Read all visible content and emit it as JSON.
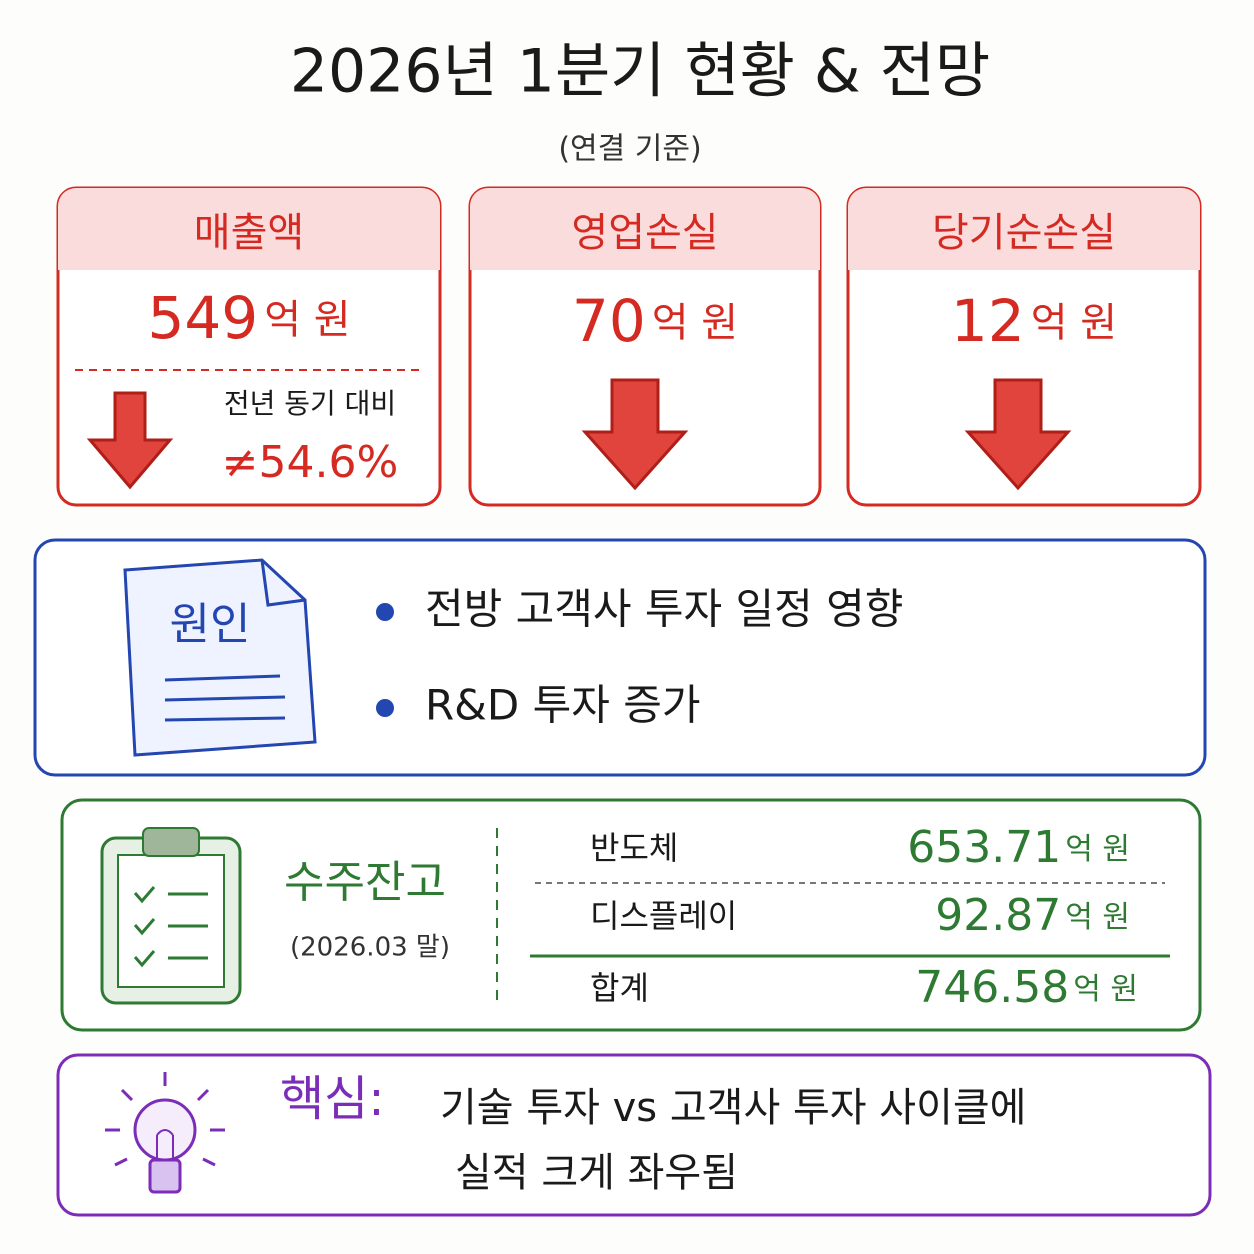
{
  "header": {
    "title": "2026년 1분기 현황 & 전망",
    "subtitle": "(연결 기준)"
  },
  "metrics": [
    {
      "label": "매출액",
      "value": "549",
      "unit": "억 원",
      "note": "전년 동기 대비",
      "change": "≠54.6%"
    },
    {
      "label": "영업손실",
      "value": "70",
      "unit": "억 원"
    },
    {
      "label": "당기순손실",
      "value": "12",
      "unit": "억 원"
    }
  ],
  "causes": {
    "label": "원인",
    "items": [
      "전방 고객사 투자 일정 영향",
      "R&D 투자 증가"
    ]
  },
  "backlog": {
    "label": "수주잔고",
    "date": "(2026.03 말)",
    "rows": [
      [
        "반도체",
        "653.71",
        "억 원"
      ],
      [
        "디스플레이",
        "92.87",
        "억 원"
      ],
      [
        "합계",
        "746.58",
        "억 원"
      ]
    ]
  },
  "key": {
    "label": "핵심:",
    "lines": [
      "기술 투자 vs 고객사 투자 사이클에",
      "실적 크게 좌우됨"
    ]
  }
}
